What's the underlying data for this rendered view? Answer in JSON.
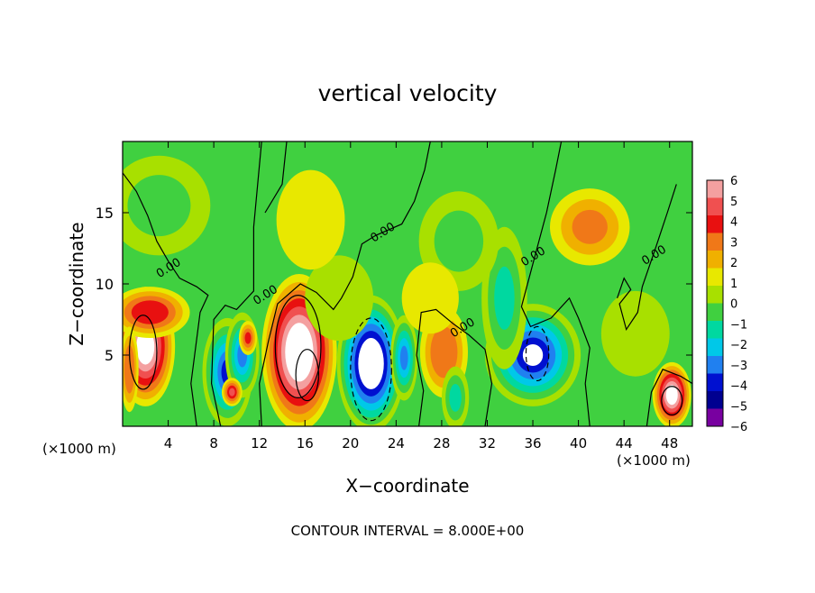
{
  "chart_data": {
    "type": "heatmap",
    "title": "vertical velocity",
    "xlabel": "X−coordinate",
    "ylabel": "Z−coordinate",
    "x_unit_left": "(×1000 m)",
    "x_unit_right": "(×1000 m)",
    "footer": "CONTOUR INTERVAL = 8.000E+00",
    "xlim": [
      0,
      50
    ],
    "ylim": [
      0,
      20
    ],
    "x_ticks": [
      4,
      8,
      12,
      16,
      20,
      24,
      28,
      32,
      36,
      40,
      44,
      48
    ],
    "y_ticks": [
      5,
      10,
      15
    ],
    "colorbar": {
      "levels": [
        6,
        5,
        4,
        3,
        2,
        1,
        0,
        -1,
        -2,
        -3,
        -4,
        -5,
        -6
      ],
      "labels": [
        "6",
        "5",
        "4",
        "3",
        "2",
        "1",
        "0",
        "−1",
        "−2",
        "−3",
        "−4",
        "−5",
        "−6"
      ],
      "colors": [
        "#f4a0a0",
        "#f05050",
        "#e81010",
        "#f07818",
        "#f0b000",
        "#e8e800",
        "#a8e000",
        "#40d040",
        "#00d8a0",
        "#00c8e8",
        "#2080f0",
        "#0010d0",
        "#000090",
        "#7800a0"
      ]
    },
    "contour_labels": [
      {
        "text": "0.00",
        "x": 4.2,
        "y": 10.9
      },
      {
        "text": "0.00",
        "x": 12.7,
        "y": 9.0
      },
      {
        "text": "0.00",
        "x": 23.0,
        "y": 13.4
      },
      {
        "text": "0.00",
        "x": 30.0,
        "y": 6.7
      },
      {
        "text": "0.00",
        "x": 36.2,
        "y": 11.7
      },
      {
        "text": "0.00",
        "x": 46.8,
        "y": 11.8
      }
    ],
    "features": [
      {
        "x": 2.0,
        "y": 5.6,
        "value": 8.0,
        "rx": 2.6,
        "ry": 4.2
      },
      {
        "x": 2.4,
        "y": 8.0,
        "value": 4.5,
        "rx": 3.5,
        "ry": 1.8
      },
      {
        "x": 0.6,
        "y": 4.0,
        "value": 3.5,
        "rx": 0.8,
        "ry": 3.0
      },
      {
        "x": 9.2,
        "y": 3.8,
        "value": -6.0,
        "rx": 2.2,
        "ry": 3.8
      },
      {
        "x": 10.5,
        "y": 5.0,
        "value": -5.0,
        "rx": 1.5,
        "ry": 3.0
      },
      {
        "x": 9.6,
        "y": 2.4,
        "value": 5.0,
        "rx": 0.9,
        "ry": 1.0
      },
      {
        "x": 11.0,
        "y": 6.2,
        "value": 4.0,
        "rx": 0.8,
        "ry": 1.2
      },
      {
        "x": 15.5,
        "y": 5.2,
        "value": 9.0,
        "rx": 3.3,
        "ry": 5.5
      },
      {
        "x": 21.8,
        "y": 4.4,
        "value": -9.0,
        "rx": 3.0,
        "ry": 4.8
      },
      {
        "x": 24.7,
        "y": 4.8,
        "value": -5.0,
        "rx": 1.2,
        "ry": 3.0
      },
      {
        "x": 28.2,
        "y": 5.2,
        "value": 3.2,
        "rx": 2.1,
        "ry": 3.2
      },
      {
        "x": 29.2,
        "y": 2.0,
        "value": -3.0,
        "rx": 1.2,
        "ry": 2.2
      },
      {
        "x": 36.0,
        "y": 5.0,
        "value": -7.0,
        "rx": 4.2,
        "ry": 3.6
      },
      {
        "x": 33.5,
        "y": 9.0,
        "value": -2.8,
        "rx": 2.0,
        "ry": 5.0
      },
      {
        "x": 29.5,
        "y": 13.0,
        "value": -1.6,
        "rx": 3.5,
        "ry": 3.5
      },
      {
        "x": 41.0,
        "y": 14.0,
        "value": 2.6,
        "rx": 3.5,
        "ry": 2.7
      },
      {
        "x": 48.2,
        "y": 2.2,
        "value": 8.0,
        "rx": 1.7,
        "ry": 2.3
      },
      {
        "x": 3.2,
        "y": 15.5,
        "value": -1.8,
        "rx": 4.5,
        "ry": 3.5
      },
      {
        "x": 19.0,
        "y": 9.0,
        "value": -1.0,
        "rx": 3.0,
        "ry": 3.0
      },
      {
        "x": 45.0,
        "y": 6.5,
        "value": -1.0,
        "rx": 3.0,
        "ry": 3.0
      },
      {
        "x": 16.5,
        "y": 14.5,
        "value": 1.0,
        "rx": 3.0,
        "ry": 3.5
      },
      {
        "x": 27.0,
        "y": 9.0,
        "value": 1.2,
        "rx": 2.5,
        "ry": 2.5
      }
    ]
  }
}
